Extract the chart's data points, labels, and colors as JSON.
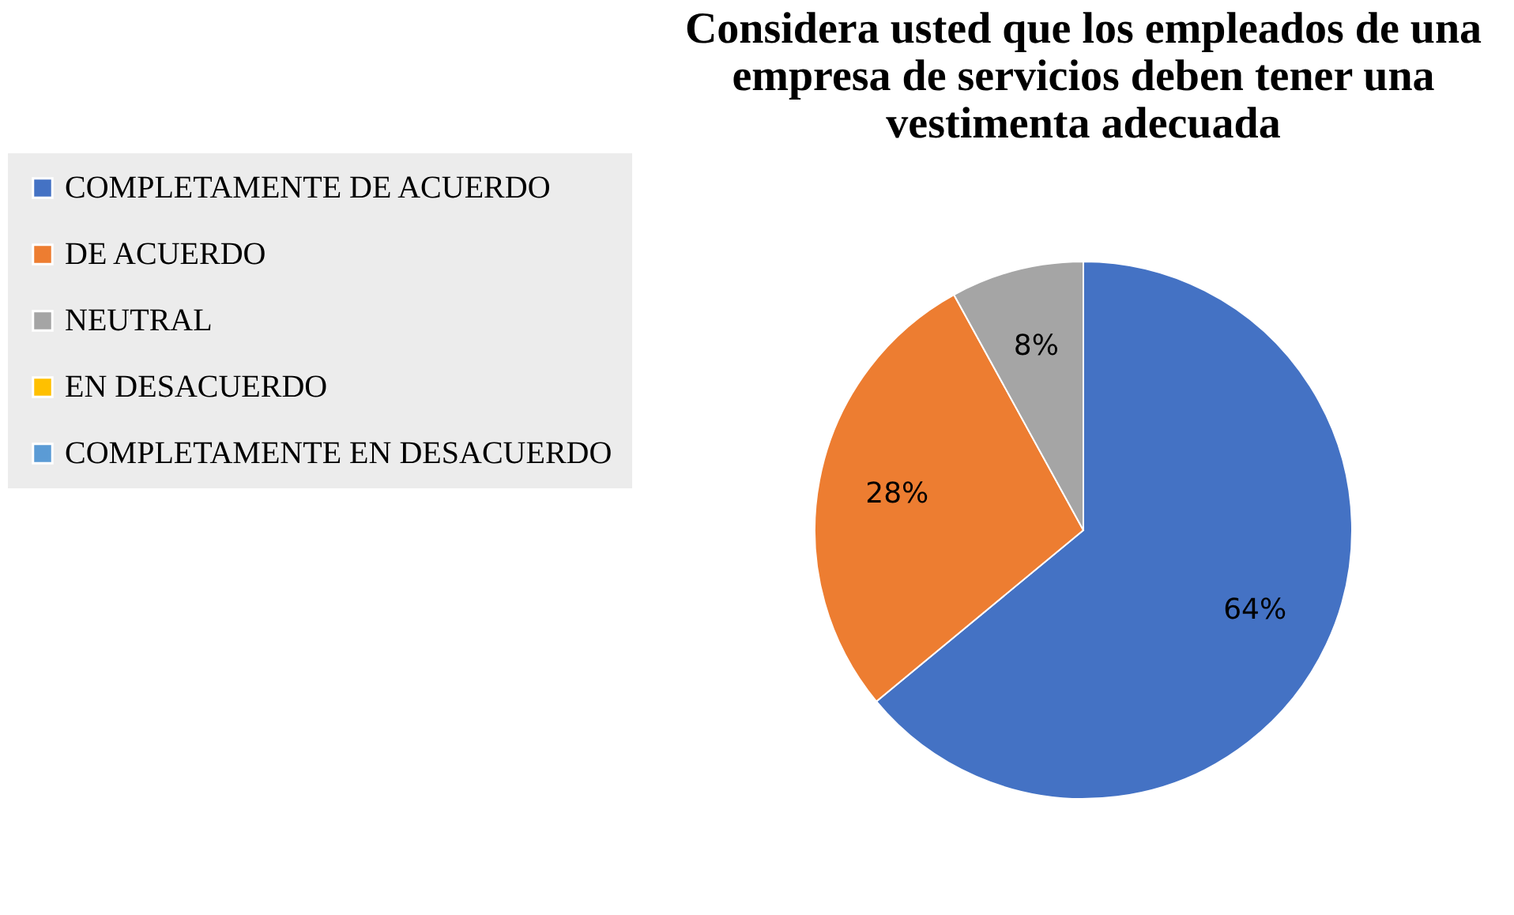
{
  "chart_data": {
    "type": "pie",
    "title": "Considera usted que los empleados de una empresa de servicios deben tener una vestimenta adecuada",
    "categories": [
      "COMPLETAMENTE DE ACUERDO",
      "DE ACUERDO",
      "NEUTRAL",
      "EN DESACUERDO",
      "COMPLETAMENTE EN DESACUERDO"
    ],
    "values": [
      64,
      28,
      8,
      0,
      0
    ],
    "colors": [
      "#4472c4",
      "#ed7d31",
      "#a5a5a5",
      "#ffc000",
      "#5b9bd5"
    ],
    "value_labels": [
      "64%",
      "28%",
      "8%",
      null,
      null
    ],
    "legend": "left"
  }
}
